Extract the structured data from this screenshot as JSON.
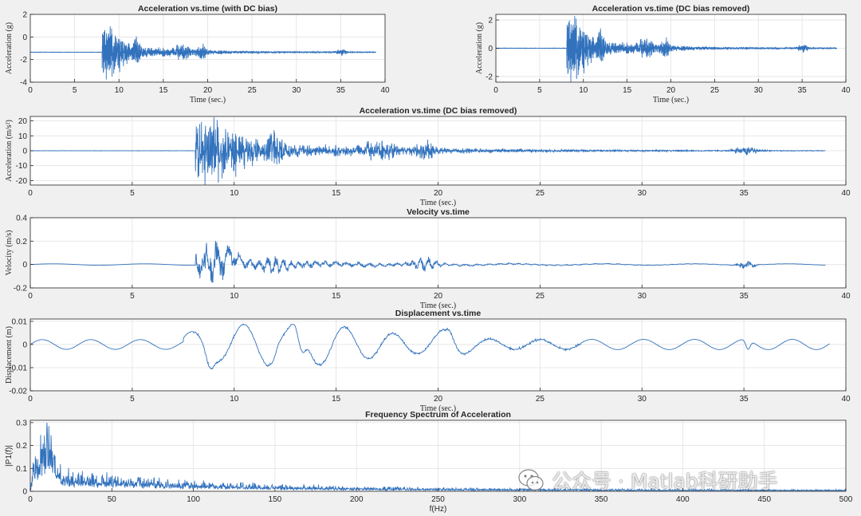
{
  "window": {
    "background": "#f0f0f0",
    "line_color": "#3272bd",
    "grid_color": "#e2e2e2"
  },
  "chart_data": [
    {
      "id": "p1",
      "type": "line",
      "title": "Acceleration vs.time (with DC bias)",
      "ylabel": "Acceleration (g)",
      "xlabel": "Time (sec.)",
      "xlim": [
        0,
        40
      ],
      "ylim": [
        -4,
        2
      ],
      "xticks": [
        0,
        5,
        10,
        15,
        20,
        25,
        30,
        35,
        40
      ],
      "yticks": [
        -4,
        -2,
        0,
        2
      ],
      "ytick_labels": [
        "-4",
        "-2",
        "0",
        "2"
      ],
      "signal": {
        "kind": "accel",
        "baseline": -1.35,
        "amp": 1.35,
        "t_end": 39
      }
    },
    {
      "id": "p2",
      "type": "line",
      "title": "Acceleration vs.time (DC bias removed)",
      "ylabel": "Acceleration (g)",
      "xlabel": "Time (sec.)",
      "xlim": [
        0,
        40
      ],
      "ylim": [
        -2.4,
        2.4
      ],
      "xticks": [
        0,
        5,
        10,
        15,
        20,
        25,
        30,
        35,
        40
      ],
      "yticks": [
        -2,
        0,
        2
      ],
      "ytick_labels": [
        "-2",
        "0",
        "2"
      ],
      "signal": {
        "kind": "accel",
        "baseline": 0,
        "amp": 1.35,
        "t_end": 39
      }
    },
    {
      "id": "p3",
      "type": "line",
      "title": "Acceleration vs.time (DC bias removed)",
      "ylabel": "Acceleration (m/s²)",
      "xlabel": "Time (sec.)",
      "xlim": [
        0,
        40
      ],
      "ylim": [
        -23,
        23
      ],
      "xticks": [
        0,
        5,
        10,
        15,
        20,
        25,
        30,
        35,
        40
      ],
      "yticks": [
        -20,
        -10,
        0,
        10,
        20
      ],
      "ytick_labels": [
        "-20",
        "-10",
        "0",
        "10",
        "20"
      ],
      "signal": {
        "kind": "accel",
        "baseline": 0,
        "amp": 13.3,
        "t_end": 39
      }
    },
    {
      "id": "p4",
      "type": "line",
      "title": "Velocity vs.time",
      "ylabel": "Velocity (m/s)",
      "xlabel": "Time (sec.)",
      "xlim": [
        0,
        40
      ],
      "ylim": [
        -0.2,
        0.4
      ],
      "xticks": [
        0,
        5,
        10,
        15,
        20,
        25,
        30,
        35,
        40
      ],
      "yticks": [
        -0.2,
        0,
        0.2,
        0.4
      ],
      "ytick_labels": [
        "-0.2",
        "0",
        "0.2",
        "0.4"
      ],
      "signal": {
        "kind": "velocity",
        "t_end": 39
      }
    },
    {
      "id": "p5",
      "type": "line",
      "title": "Displacement vs.time",
      "ylabel": "Displacement (m)",
      "xlabel": "Time (sec.)",
      "xlim": [
        0,
        40
      ],
      "ylim": [
        -0.02,
        0.011
      ],
      "xticks": [
        0,
        5,
        10,
        15,
        20,
        25,
        30,
        35,
        40
      ],
      "yticks": [
        -0.02,
        -0.01,
        0,
        0.01
      ],
      "ytick_labels": [
        "-0.02",
        "-0.01",
        "0",
        "0.01"
      ],
      "signal": {
        "kind": "displacement",
        "t_end": 39.2
      }
    },
    {
      "id": "p6",
      "type": "line",
      "title": "Frequency Spectrum of Acceleration",
      "ylabel": "|P1(f)|",
      "xlabel": "f(Hz)",
      "xlim": [
        0,
        500
      ],
      "ylim": [
        0,
        0.31
      ],
      "xticks": [
        0,
        50,
        100,
        150,
        200,
        250,
        300,
        350,
        400,
        450,
        500
      ],
      "yticks": [
        0,
        0.1,
        0.2,
        0.3
      ],
      "ytick_labels": [
        "0",
        "0.1",
        "0.2",
        "0.3"
      ],
      "signal": {
        "kind": "spectrum",
        "peak_hz": 10,
        "peak_value": 0.3
      }
    }
  ],
  "watermark": {
    "text": "公众号 · Matlab科研助手",
    "icon": "wechat-logo-icon"
  }
}
